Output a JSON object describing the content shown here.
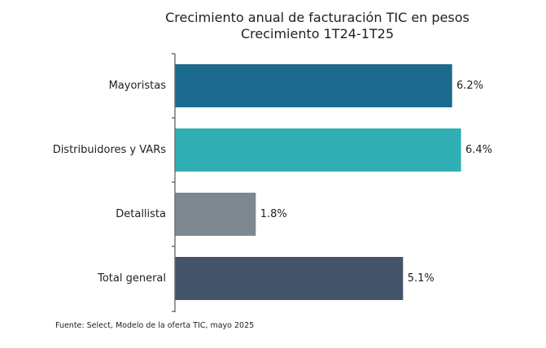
{
  "chart_data": {
    "type": "bar",
    "orientation": "horizontal",
    "title": "Crecimiento anual de facturación TIC en pesos",
    "subtitle": "Crecimiento 1T24-1T25",
    "categories": [
      "Mayoristas",
      "Distribuidores y VARs",
      "Detallista",
      "Total general"
    ],
    "values": [
      6.2,
      6.4,
      1.8,
      5.1
    ],
    "value_labels": [
      "6.2%",
      "6.4%",
      "1.8%",
      "5.1%"
    ],
    "colors": [
      "#1c6a8e",
      "#2fafb4",
      "#7d8790",
      "#43546b"
    ],
    "xlabel": "",
    "ylabel": "",
    "xlim": [
      0,
      6.4
    ],
    "grid": false,
    "legend": "none"
  },
  "footer": {
    "source": "Fuente: Select, Modelo de la oferta TIC, mayo 2025"
  }
}
